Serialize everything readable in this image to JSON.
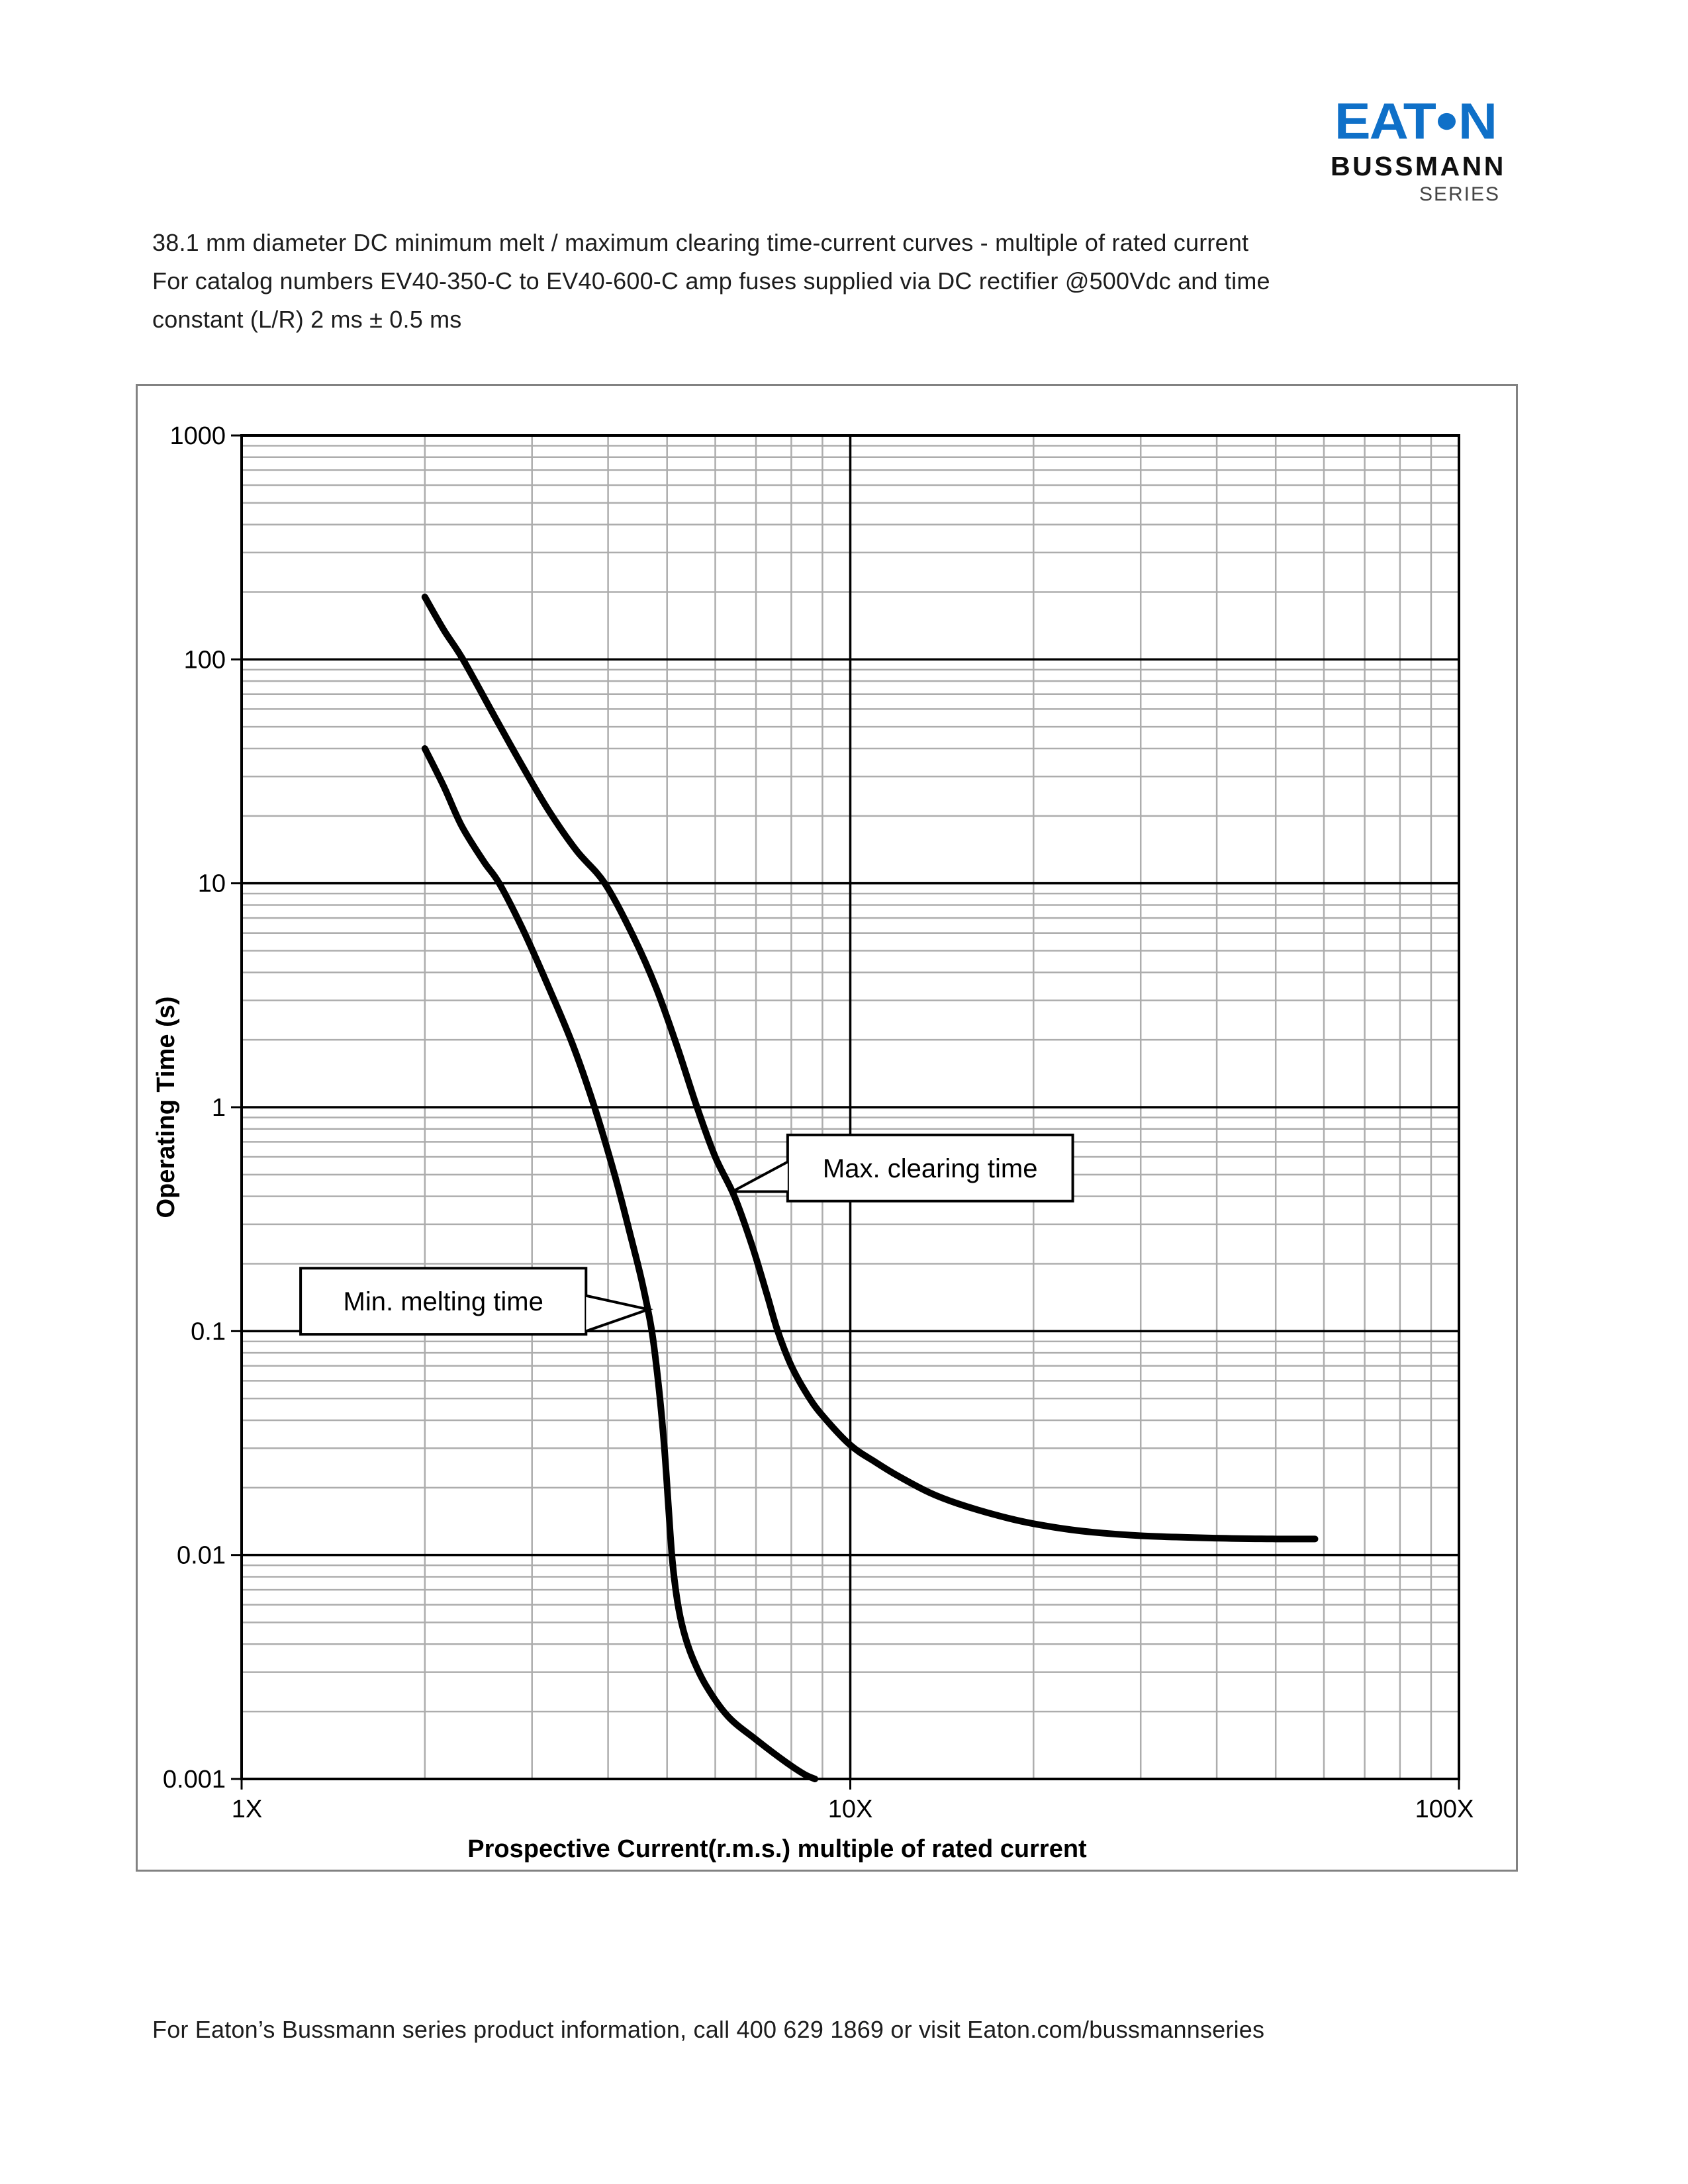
{
  "page": {
    "title_lines": [
      "38.1 mm diameter DC minimum melt / maximum clearing time-current curves - multiple of rated current",
      "For catalog numbers EV40-350-C to EV40-600-C amp fuses supplied via DC rectifier @500Vdc and time",
      "constant (L/R) 2 ms ± 0.5 ms"
    ],
    "footer": "For Eaton’s Bussmann series product information, call 400 629 1869 or visit Eaton.com/bussmannseries"
  },
  "logo": {
    "word_left": "EAT",
    "word_right": "N",
    "line1": "BUSSMANN",
    "line2": "SERIES"
  },
  "colors": {
    "eaton_blue": "#0f70c8",
    "text": "#1d1d1d",
    "grid_minor": "#adadad",
    "grid_major": "#000000",
    "curve": "#000000",
    "chart_border": "#828282"
  },
  "chart_data": {
    "type": "line",
    "title": "",
    "x_axis": {
      "label": "Prospective Current(r.m.s.) multiple of rated current",
      "scale": "log",
      "min": 1,
      "max": 100,
      "ticks": [
        "1X",
        "10X",
        "100X"
      ],
      "tick_values": [
        1,
        10,
        100
      ]
    },
    "y_axis": {
      "label": "Operating Time (s)",
      "scale": "log",
      "min": 0.001,
      "max": 1000,
      "ticks": [
        "1000",
        "100",
        "10",
        "1",
        "0.1",
        "0.01",
        "0.001"
      ],
      "tick_values": [
        1000,
        100,
        10,
        1,
        0.1,
        0.01,
        0.001
      ]
    },
    "grid": "log minor + major, gray minors, black majors",
    "legend_position": "none",
    "series": [
      {
        "name": "Min. melting time",
        "points": [
          [
            2.0,
            40
          ],
          [
            2.15,
            27
          ],
          [
            2.3,
            18
          ],
          [
            2.5,
            12.5
          ],
          [
            2.65,
            10
          ],
          [
            2.9,
            6.2
          ],
          [
            3.2,
            3.4
          ],
          [
            3.5,
            1.9
          ],
          [
            3.8,
            1.0
          ],
          [
            4.1,
            0.5
          ],
          [
            4.35,
            0.27
          ],
          [
            4.55,
            0.165
          ],
          [
            4.72,
            0.1
          ],
          [
            4.85,
            0.055
          ],
          [
            4.95,
            0.03
          ],
          [
            5.03,
            0.016
          ],
          [
            5.1,
            0.0095
          ],
          [
            5.2,
            0.0062
          ],
          [
            5.32,
            0.0046
          ],
          [
            5.5,
            0.0035
          ],
          [
            5.8,
            0.0026
          ],
          [
            6.3,
            0.0019
          ],
          [
            7.0,
            0.0015
          ],
          [
            7.8,
            0.0012
          ],
          [
            8.4,
            0.00105
          ],
          [
            8.75,
            0.001
          ]
        ]
      },
      {
        "name": "Max. clearing time",
        "points": [
          [
            2.0,
            190
          ],
          [
            2.15,
            135
          ],
          [
            2.31,
            100
          ],
          [
            2.6,
            56
          ],
          [
            2.9,
            33
          ],
          [
            3.2,
            21
          ],
          [
            3.55,
            14
          ],
          [
            3.95,
            10
          ],
          [
            4.4,
            5.8
          ],
          [
            4.8,
            3.4
          ],
          [
            5.2,
            1.85
          ],
          [
            5.6,
            1.0
          ],
          [
            6.0,
            0.6
          ],
          [
            6.45,
            0.4
          ],
          [
            6.9,
            0.24
          ],
          [
            7.3,
            0.145
          ],
          [
            7.6,
            0.1
          ],
          [
            8.0,
            0.07
          ],
          [
            8.5,
            0.052
          ],
          [
            9.0,
            0.042
          ],
          [
            10.0,
            0.031
          ],
          [
            11.0,
            0.026
          ],
          [
            12.0,
            0.0225
          ],
          [
            13.5,
            0.019
          ],
          [
            15.0,
            0.017
          ],
          [
            17.5,
            0.015
          ],
          [
            20.0,
            0.0138
          ],
          [
            24.0,
            0.0128
          ],
          [
            30.0,
            0.0122
          ],
          [
            40.0,
            0.0119
          ],
          [
            50.0,
            0.0118
          ],
          [
            58.0,
            0.0118
          ]
        ]
      }
    ],
    "annotations": [
      {
        "label": "Min. melting time",
        "box": {
          "x": [
            1.25,
            3.68
          ],
          "y": [
            0.191,
            0.0968
          ]
        },
        "side": "right",
        "base": [
          0.144,
          0.1
        ],
        "tip": [
          4.66,
          0.125
        ]
      },
      {
        "label": "Max. clearing time",
        "box": {
          "x": [
            7.89,
            23.2
          ],
          "y": [
            0.752,
            0.381
          ]
        },
        "side": "left",
        "base": [
          0.57,
          0.42
        ],
        "tip": [
          6.4,
          0.42
        ]
      }
    ]
  }
}
